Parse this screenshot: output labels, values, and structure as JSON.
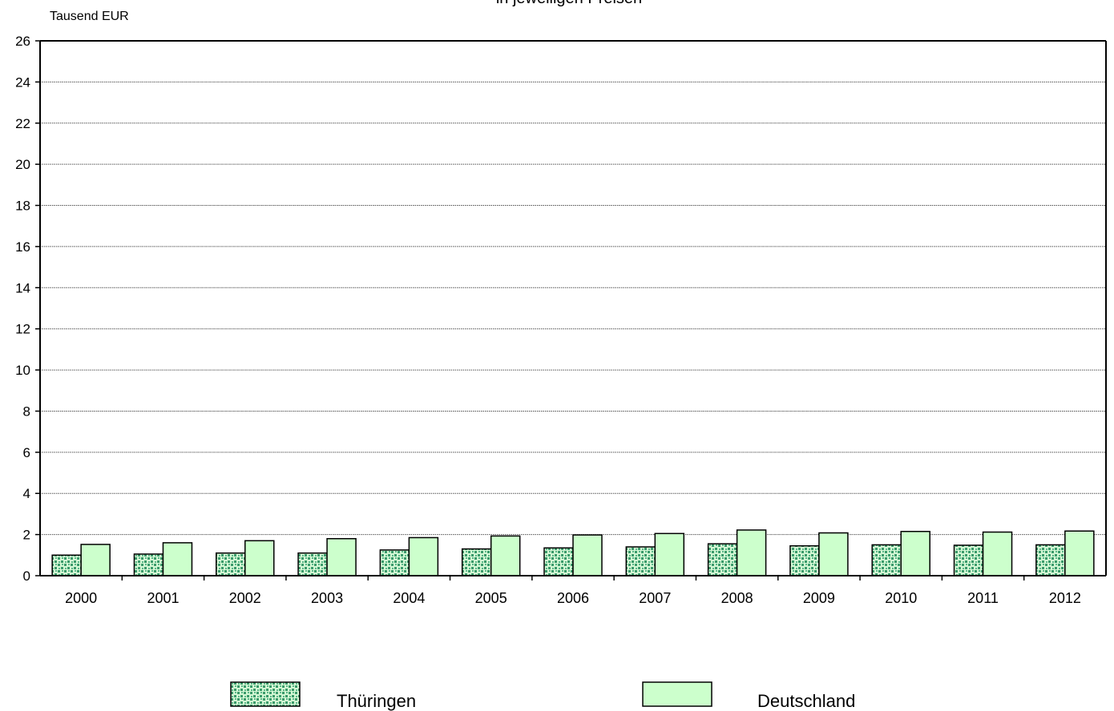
{
  "chart_data": {
    "type": "bar",
    "subtitle": "- in jeweiligen Preisen -",
    "ylabel": "Tausend EUR",
    "xlabel": "",
    "ylim": [
      0,
      26
    ],
    "yticks": [
      0,
      2,
      4,
      6,
      8,
      10,
      12,
      14,
      16,
      18,
      20,
      22,
      24,
      26
    ],
    "grid": true,
    "legend_position": "bottom",
    "categories": [
      "2000",
      "2001",
      "2002",
      "2003",
      "2004",
      "2005",
      "2006",
      "2007",
      "2008",
      "2009",
      "2010",
      "2011",
      "2012"
    ],
    "series": [
      {
        "name": "Thüringen",
        "color": "#c8f5c8",
        "pattern_color": "#3a9a6a",
        "values": [
          1.0,
          1.05,
          1.1,
          1.1,
          1.25,
          1.3,
          1.35,
          1.4,
          1.55,
          1.45,
          1.5,
          1.48,
          1.5
        ]
      },
      {
        "name": "Deutschland",
        "color": "#ccffcc",
        "values": [
          1.52,
          1.6,
          1.7,
          1.8,
          1.85,
          1.93,
          1.98,
          2.05,
          2.22,
          2.08,
          2.15,
          2.12,
          2.17
        ]
      }
    ]
  }
}
